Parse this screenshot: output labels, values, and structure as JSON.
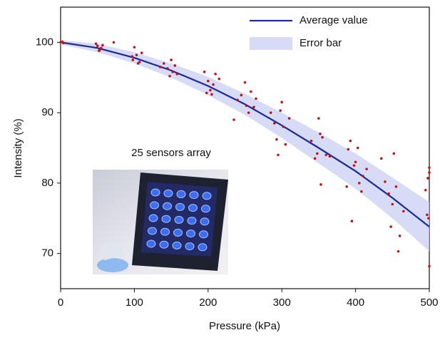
{
  "chart_data": {
    "type": "line",
    "xlabel": "Pressure (kPa)",
    "ylabel": "Intensity (%)",
    "xlim": [
      0,
      500
    ],
    "ylim": [
      65,
      105
    ],
    "xticks": [
      0,
      100,
      200,
      300,
      400,
      500
    ],
    "yticks": [
      70,
      80,
      90,
      100
    ],
    "legend": "upper right",
    "annotation": "25 sensors array",
    "series": [
      {
        "name": "Average value",
        "type": "line",
        "color": "#1a2a9c",
        "x": [
          0,
          50,
          100,
          150,
          200,
          250,
          300,
          350,
          400,
          450,
          500
        ],
        "values": [
          100,
          99.2,
          97.8,
          96,
          93.8,
          91.2,
          88.2,
          85,
          81.7,
          77.9,
          73.8
        ]
      },
      {
        "name": "Error bar",
        "type": "band",
        "color": "#c9cff3",
        "x": [
          0,
          50,
          100,
          150,
          200,
          250,
          300,
          350,
          400,
          450,
          500
        ],
        "lower": [
          99.7,
          98.6,
          97,
          95,
          92.5,
          89.7,
          86.4,
          82.8,
          79.2,
          75,
          70.3
        ],
        "upper": [
          100.3,
          99.8,
          98.6,
          97,
          95.1,
          92.7,
          90,
          87.2,
          84.2,
          80.8,
          77.3
        ]
      },
      {
        "type": "scatter",
        "color": "#c0141b",
        "x": [
          0,
          2,
          4,
          50,
          52,
          55,
          48,
          57,
          53,
          72,
          100,
          98,
          103,
          107,
          110,
          97,
          105,
          140,
          145,
          150,
          152,
          155,
          158,
          148,
          135,
          195,
          200,
          203,
          207,
          210,
          198,
          205,
          215,
          235,
          240,
          245,
          250,
          252,
          255,
          258,
          262,
          265,
          285,
          290,
          293,
          295,
          300,
          302,
          305,
          310,
          298,
          340,
          345,
          350,
          352,
          353,
          355,
          348,
          360,
          365,
          390,
          395,
          398,
          400,
          403,
          405,
          408,
          410,
          415,
          393,
          388,
          435,
          440,
          445,
          448,
          450,
          452,
          455,
          458,
          460,
          465,
          495,
          497,
          499,
          500,
          500,
          500,
          498
        ],
        "values": [
          100,
          100.1,
          99.9,
          99.5,
          98.8,
          99.2,
          99.8,
          99.6,
          98.9,
          100,
          99.3,
          97.5,
          98.2,
          97.2,
          98.5,
          98,
          97,
          97,
          96.3,
          97.5,
          95.8,
          96.7,
          95.5,
          95.2,
          96.5,
          95.8,
          94.5,
          93.2,
          94,
          95.5,
          92.8,
          92.6,
          94.8,
          89,
          91.8,
          92.5,
          94.3,
          91,
          90,
          93,
          90.8,
          92,
          90,
          88.5,
          86.2,
          84,
          91.5,
          88,
          85.5,
          89.2,
          90.3,
          86,
          83.5,
          89.2,
          87,
          79.8,
          86.5,
          84.2,
          84,
          83.8,
          84.8,
          74.6,
          82.5,
          83,
          85,
          80,
          78.8,
          81,
          82,
          86,
          79.5,
          83.5,
          80.2,
          78.5,
          73.8,
          77,
          84.2,
          79.5,
          70.3,
          72.5,
          76,
          79,
          75.5,
          75,
          81.5,
          82.2,
          68.2,
          80.7
        ]
      }
    ]
  }
}
